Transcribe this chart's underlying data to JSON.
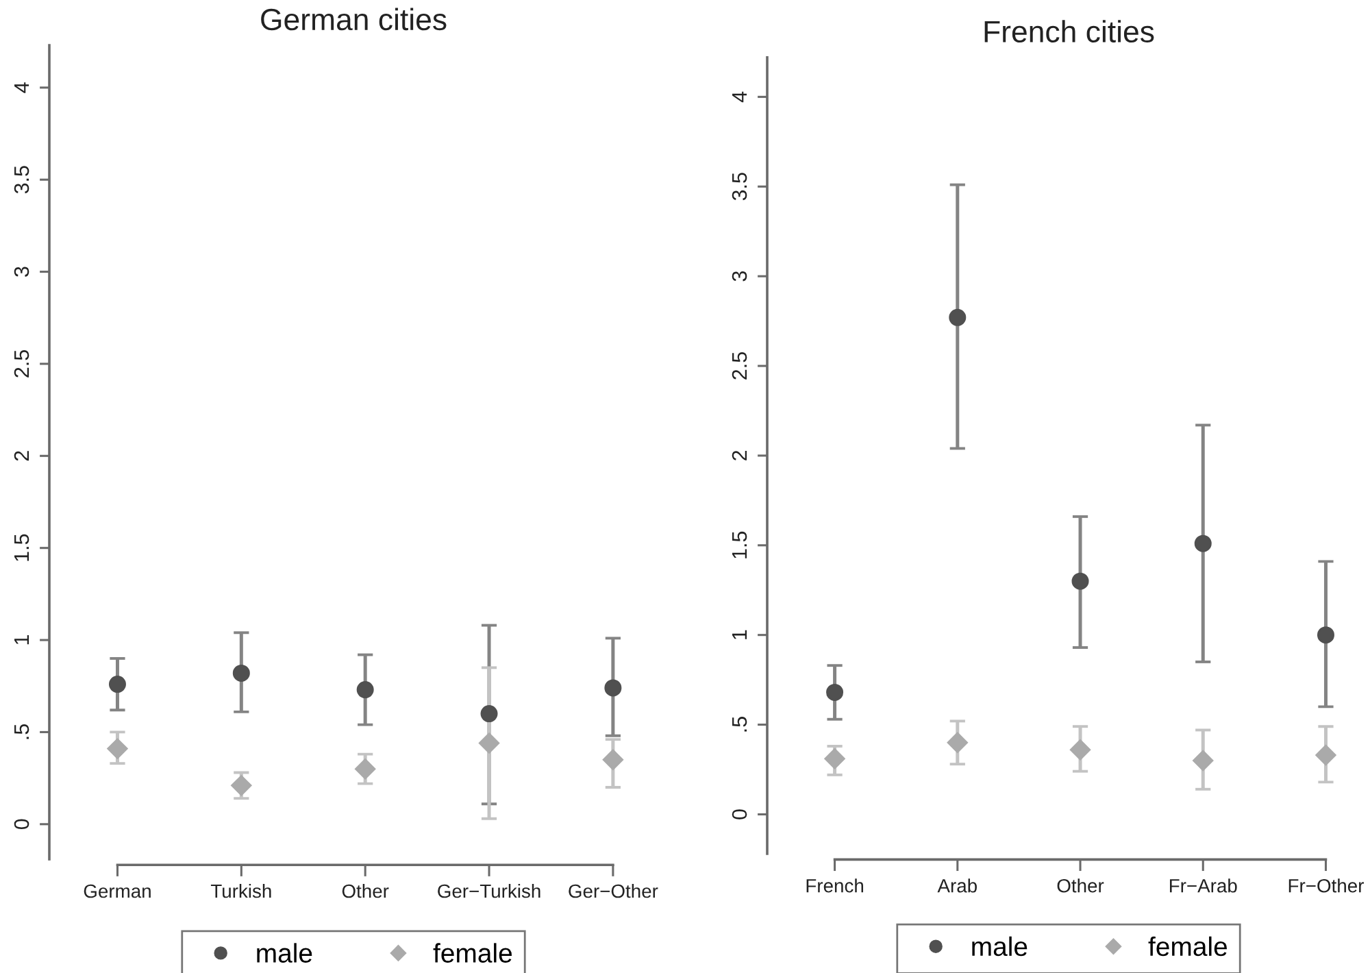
{
  "chart_data": [
    {
      "type": "scatter",
      "title": "German cities",
      "categories": [
        "German",
        "Turkish",
        "Other",
        "Ger−Turkish",
        "Ger−Other"
      ],
      "series": [
        {
          "name": "male",
          "color": "#505050",
          "marker": "circle",
          "values": [
            0.76,
            0.82,
            0.73,
            0.6,
            0.74
          ],
          "errors": [
            [
              0.62,
              0.9
            ],
            [
              0.61,
              1.04
            ],
            [
              0.54,
              0.92
            ],
            [
              0.11,
              1.08
            ],
            [
              0.48,
              1.01
            ]
          ]
        },
        {
          "name": "female",
          "color": "#aaaaaa",
          "marker": "diamond",
          "values": [
            0.41,
            0.21,
            0.3,
            0.44,
            0.35
          ],
          "errors": [
            [
              0.33,
              0.5
            ],
            [
              0.14,
              0.28
            ],
            [
              0.22,
              0.38
            ],
            [
              0.03,
              0.85
            ],
            [
              0.2,
              0.46
            ]
          ]
        }
      ],
      "ylim": [
        -0.19,
        4.23
      ],
      "yticks": [
        0,
        {
          "value": 0.5,
          "label": ".5"
        },
        1,
        1.5,
        2,
        2.5,
        3,
        3.5,
        4
      ],
      "legend": "bottom"
    },
    {
      "type": "scatter",
      "title": "French cities",
      "categories": [
        "French",
        "Arab",
        "Other",
        "Fr−Arab",
        "Fr−Other"
      ],
      "series": [
        {
          "name": "male",
          "color": "#505050",
          "marker": "circle",
          "values": [
            0.68,
            2.77,
            1.3,
            1.51,
            1.0
          ],
          "errors": [
            [
              0.53,
              0.83
            ],
            [
              2.04,
              3.51
            ],
            [
              0.93,
              1.66
            ],
            [
              0.85,
              2.17
            ],
            [
              0.6,
              1.41
            ]
          ]
        },
        {
          "name": "female",
          "color": "#aaaaaa",
          "marker": "diamond",
          "values": [
            0.31,
            0.4,
            0.36,
            0.3,
            0.33
          ],
          "errors": [
            [
              0.22,
              0.38
            ],
            [
              0.28,
              0.52
            ],
            [
              0.24,
              0.49
            ],
            [
              0.14,
              0.47
            ],
            [
              0.18,
              0.49
            ]
          ]
        }
      ],
      "ylim": [
        -0.22,
        4.22
      ],
      "yticks": [
        0,
        {
          "value": 0.5,
          "label": ".5"
        },
        1,
        1.5,
        2,
        2.5,
        3,
        3.5,
        4
      ],
      "legend": "bottom"
    }
  ]
}
